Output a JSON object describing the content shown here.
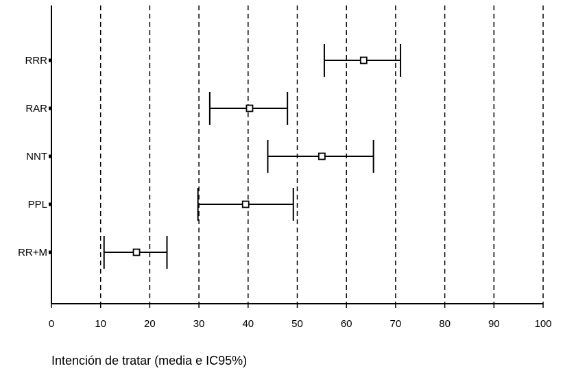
{
  "chart_data": {
    "type": "forest",
    "title": "",
    "xlabel": "Intención de tratar (media e IC95%)",
    "ylabel": "",
    "xlim": [
      0,
      100
    ],
    "xticks": [
      0,
      10,
      20,
      30,
      40,
      50,
      60,
      70,
      80,
      90,
      100
    ],
    "grid": true,
    "series": [
      {
        "category": "RRR",
        "mean": 63.5,
        "lower": 55.5,
        "upper": 71.0
      },
      {
        "category": "RAR",
        "mean": 40.3,
        "lower": 32.2,
        "upper": 48.0
      },
      {
        "category": "NNT",
        "mean": 55.0,
        "lower": 44.0,
        "upper": 65.5
      },
      {
        "category": "PPL",
        "mean": 39.5,
        "lower": 29.8,
        "upper": 49.2
      },
      {
        "category": "RR+M",
        "mean": 17.3,
        "lower": 10.7,
        "upper": 23.5
      }
    ],
    "colors": {
      "line": "#000000",
      "marker_fill": "#ffffff"
    }
  }
}
